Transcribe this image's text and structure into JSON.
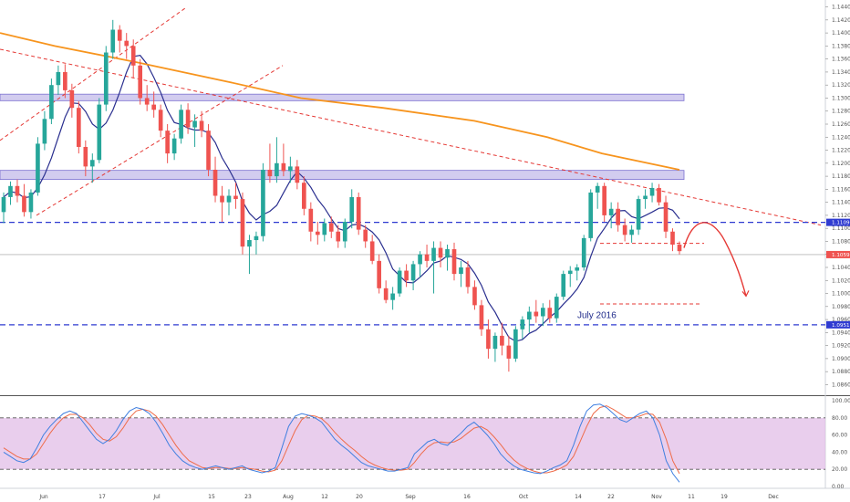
{
  "chart_data": {
    "type": "candlestick",
    "symbol": "",
    "title": "",
    "y_axis": {
      "ticks": [
        "1.14400",
        "1.14200",
        "1.14000",
        "1.13800",
        "1.13600",
        "1.13400",
        "1.13200",
        "1.13000",
        "1.12800",
        "1.12600",
        "1.12400",
        "1.12200",
        "1.12000",
        "1.11800",
        "1.11600",
        "1.11400",
        "1.11200",
        "1.11000",
        "1.10800",
        "1.10600",
        "1.10400",
        "1.10200",
        "1.10000",
        "1.09800",
        "1.09600",
        "1.09400",
        "1.09200",
        "1.09000",
        "1.08800",
        "1.08600"
      ],
      "range": [
        1.0855,
        1.1445
      ]
    },
    "x_axis": {
      "labels": [
        "Jun",
        "17",
        "Jul",
        "15",
        "23",
        "Aug",
        "12",
        "20",
        "Sep",
        "16",
        "Oct",
        "14",
        "22",
        "Nov",
        "11",
        "19",
        "Dec"
      ]
    },
    "price_labels": [
      {
        "text": "1.11092",
        "value": 1.11092,
        "color": "#2f3bd1"
      },
      {
        "text": "1.10597",
        "value": 1.10597,
        "color": "#ef5350"
      },
      {
        "text": "1.09519",
        "value": 1.09519,
        "color": "#2f3bd1"
      }
    ],
    "annotations": [
      {
        "text": "July 2016",
        "color": "#1f2a8a"
      }
    ],
    "zones": [
      {
        "from": 1.1296,
        "to": 1.1306,
        "color": "#9c8fdc"
      },
      {
        "from": 1.1175,
        "to": 1.1189,
        "color": "#9c8fdc"
      }
    ],
    "candles": [
      [
        1.1125,
        1.1155,
        1.1108,
        1.1148
      ],
      [
        1.1148,
        1.1172,
        1.1136,
        1.1165
      ],
      [
        1.1165,
        1.1175,
        1.114,
        1.115
      ],
      [
        1.115,
        1.1168,
        1.1118,
        1.1125
      ],
      [
        1.1125,
        1.116,
        1.1115,
        1.1155
      ],
      [
        1.1155,
        1.124,
        1.115,
        1.123
      ],
      [
        1.123,
        1.128,
        1.122,
        1.1268
      ],
      [
        1.1268,
        1.133,
        1.126,
        1.132
      ],
      [
        1.132,
        1.135,
        1.1305,
        1.134
      ],
      [
        1.134,
        1.1352,
        1.13,
        1.1312
      ],
      [
        1.1312,
        1.1322,
        1.127,
        1.1285
      ],
      [
        1.1285,
        1.1295,
        1.1215,
        1.1225
      ],
      [
        1.1225,
        1.1235,
        1.118,
        1.1195
      ],
      [
        1.1195,
        1.1215,
        1.117,
        1.1205
      ],
      [
        1.1205,
        1.13,
        1.12,
        1.129
      ],
      [
        1.129,
        1.138,
        1.128,
        1.137
      ],
      [
        1.137,
        1.142,
        1.136,
        1.1405
      ],
      [
        1.1405,
        1.1412,
        1.137,
        1.1388
      ],
      [
        1.1388,
        1.14,
        1.136,
        1.138
      ],
      [
        1.138,
        1.139,
        1.133,
        1.135
      ],
      [
        1.135,
        1.136,
        1.129,
        1.13
      ],
      [
        1.13,
        1.132,
        1.128,
        1.129
      ],
      [
        1.129,
        1.131,
        1.127,
        1.1282
      ],
      [
        1.1282,
        1.129,
        1.124,
        1.125
      ],
      [
        1.125,
        1.126,
        1.12,
        1.1215
      ],
      [
        1.1215,
        1.1245,
        1.1205,
        1.1238
      ],
      [
        1.1238,
        1.129,
        1.123,
        1.1282
      ],
      [
        1.1282,
        1.1292,
        1.1245,
        1.1255
      ],
      [
        1.1255,
        1.1275,
        1.1225,
        1.1265
      ],
      [
        1.1265,
        1.128,
        1.124,
        1.125
      ],
      [
        1.125,
        1.126,
        1.118,
        1.119
      ],
      [
        1.119,
        1.121,
        1.114,
        1.115
      ],
      [
        1.115,
        1.1165,
        1.111,
        1.114
      ],
      [
        1.114,
        1.116,
        1.112,
        1.115
      ],
      [
        1.115,
        1.117,
        1.113,
        1.1145
      ],
      [
        1.1145,
        1.1155,
        1.106,
        1.1072
      ],
      [
        1.1072,
        1.109,
        1.103,
        1.1082
      ],
      [
        1.1082,
        1.1095,
        1.106,
        1.1088
      ],
      [
        1.1088,
        1.12,
        1.108,
        1.119
      ],
      [
        1.119,
        1.123,
        1.117,
        1.118
      ],
      [
        1.118,
        1.124,
        1.117,
        1.12
      ],
      [
        1.12,
        1.123,
        1.118,
        1.1188
      ],
      [
        1.1188,
        1.121,
        1.117,
        1.1195
      ],
      [
        1.1195,
        1.1205,
        1.116,
        1.117
      ],
      [
        1.117,
        1.118,
        1.112,
        1.113
      ],
      [
        1.113,
        1.114,
        1.108,
        1.1095
      ],
      [
        1.1095,
        1.111,
        1.1075,
        1.109
      ],
      [
        1.109,
        1.1115,
        1.108,
        1.1108
      ],
      [
        1.1108,
        1.1118,
        1.1085,
        1.1095
      ],
      [
        1.1095,
        1.1105,
        1.107,
        1.108
      ],
      [
        1.108,
        1.1115,
        1.107,
        1.111
      ],
      [
        1.111,
        1.116,
        1.11,
        1.1148
      ],
      [
        1.1148,
        1.1155,
        1.109,
        1.1098
      ],
      [
        1.1098,
        1.1105,
        1.107,
        1.108
      ],
      [
        1.108,
        1.109,
        1.1045,
        1.105
      ],
      [
        1.105,
        1.106,
        1.1,
        1.1008
      ],
      [
        1.1008,
        1.102,
        1.0985,
        1.099
      ],
      [
        1.099,
        1.101,
        1.0975,
        1.1
      ],
      [
        1.1,
        1.104,
        1.0995,
        1.1035
      ],
      [
        1.1035,
        1.1045,
        1.101,
        1.102
      ],
      [
        1.102,
        1.105,
        1.1005,
        1.1045
      ],
      [
        1.1045,
        1.1065,
        1.1025,
        1.106
      ],
      [
        1.106,
        1.1075,
        1.104,
        1.105
      ],
      [
        1.105,
        1.108,
        1.1,
        1.107
      ],
      [
        1.107,
        1.108,
        1.104,
        1.1055
      ],
      [
        1.1055,
        1.1075,
        1.1035,
        1.1068
      ],
      [
        1.1068,
        1.1078,
        1.102,
        1.103
      ],
      [
        1.103,
        1.105,
        1.101,
        1.104
      ],
      [
        1.104,
        1.105,
        1.1,
        1.101
      ],
      [
        1.101,
        1.102,
        1.0975,
        1.0982
      ],
      [
        1.0982,
        1.099,
        1.0935,
        1.0945
      ],
      [
        1.0945,
        1.096,
        1.09,
        1.0915
      ],
      [
        1.0915,
        1.094,
        1.0895,
        1.0935
      ],
      [
        1.0935,
        1.0955,
        1.0905,
        1.092
      ],
      [
        1.092,
        1.0935,
        1.088,
        1.09
      ],
      [
        1.09,
        1.095,
        1.0895,
        1.0945
      ],
      [
        1.0945,
        1.0965,
        1.093,
        1.096
      ],
      [
        1.096,
        1.098,
        1.094,
        1.0972
      ],
      [
        1.0972,
        1.099,
        1.0955,
        1.0965
      ],
      [
        1.0965,
        1.0985,
        1.095,
        1.0978
      ],
      [
        1.0978,
        1.099,
        1.0955,
        1.0962
      ],
      [
        1.0962,
        1.1,
        1.0955,
        1.0995
      ],
      [
        1.0995,
        1.1035,
        1.099,
        1.103
      ],
      [
        1.103,
        1.1042,
        1.101,
        1.1035
      ],
      [
        1.1035,
        1.1045,
        1.102,
        1.104
      ],
      [
        1.104,
        1.109,
        1.1035,
        1.1085
      ],
      [
        1.1085,
        1.116,
        1.108,
        1.1155
      ],
      [
        1.1155,
        1.117,
        1.113,
        1.1165
      ],
      [
        1.1165,
        1.117,
        1.111,
        1.112
      ],
      [
        1.112,
        1.114,
        1.11,
        1.113
      ],
      [
        1.113,
        1.114,
        1.1095,
        1.1105
      ],
      [
        1.1105,
        1.1115,
        1.108,
        1.109
      ],
      [
        1.109,
        1.1105,
        1.1078,
        1.1098
      ],
      [
        1.1098,
        1.115,
        1.109,
        1.1145
      ],
      [
        1.1145,
        1.116,
        1.113,
        1.115
      ],
      [
        1.115,
        1.117,
        1.114,
        1.1162
      ],
      [
        1.1162,
        1.1168,
        1.1135,
        1.114
      ],
      [
        1.114,
        1.115,
        1.1085,
        1.1095
      ],
      [
        1.1095,
        1.11,
        1.1065,
        1.1075
      ],
      [
        1.1075,
        1.108,
        1.106,
        1.1065
      ]
    ],
    "stochastic_y_axis": {
      "ticks": [
        "100.00",
        "80.00",
        "60.00",
        "40.00",
        "20.00",
        "0.00"
      ],
      "range": [
        0,
        100
      ]
    },
    "stochastic_k": [
      40,
      35,
      30,
      28,
      32,
      45,
      60,
      70,
      78,
      85,
      88,
      85,
      75,
      65,
      55,
      50,
      55,
      65,
      78,
      88,
      92,
      90,
      85,
      75,
      62,
      48,
      38,
      30,
      25,
      22,
      20,
      22,
      24,
      22,
      20,
      22,
      24,
      20,
      18,
      16,
      18,
      22,
      45,
      70,
      82,
      85,
      83,
      80,
      75,
      65,
      55,
      48,
      42,
      35,
      28,
      24,
      22,
      20,
      18,
      18,
      20,
      22,
      38,
      45,
      52,
      55,
      50,
      48,
      55,
      62,
      70,
      75,
      68,
      60,
      50,
      38,
      30,
      24,
      20,
      18,
      16,
      15,
      18,
      22,
      25,
      30,
      48,
      70,
      88,
      95,
      96,
      92,
      85,
      78,
      75,
      80,
      85,
      88,
      80,
      60,
      30,
      15,
      5
    ],
    "stochastic_d": [
      45,
      40,
      35,
      32,
      32,
      38,
      50,
      62,
      72,
      80,
      84,
      84,
      80,
      72,
      62,
      55,
      53,
      58,
      68,
      80,
      88,
      90,
      88,
      82,
      72,
      60,
      48,
      38,
      30,
      26,
      22,
      21,
      22,
      22,
      21,
      21,
      22,
      21,
      20,
      18,
      17,
      19,
      30,
      48,
      65,
      78,
      83,
      82,
      79,
      72,
      63,
      55,
      48,
      42,
      35,
      29,
      25,
      22,
      20,
      19,
      19,
      20,
      28,
      38,
      46,
      51,
      52,
      51,
      52,
      56,
      62,
      68,
      70,
      66,
      58,
      49,
      39,
      31,
      25,
      21,
      18,
      16,
      16,
      18,
      21,
      25,
      35,
      52,
      70,
      85,
      92,
      94,
      90,
      85,
      80,
      80,
      82,
      85,
      84,
      75,
      55,
      30,
      15
    ]
  }
}
